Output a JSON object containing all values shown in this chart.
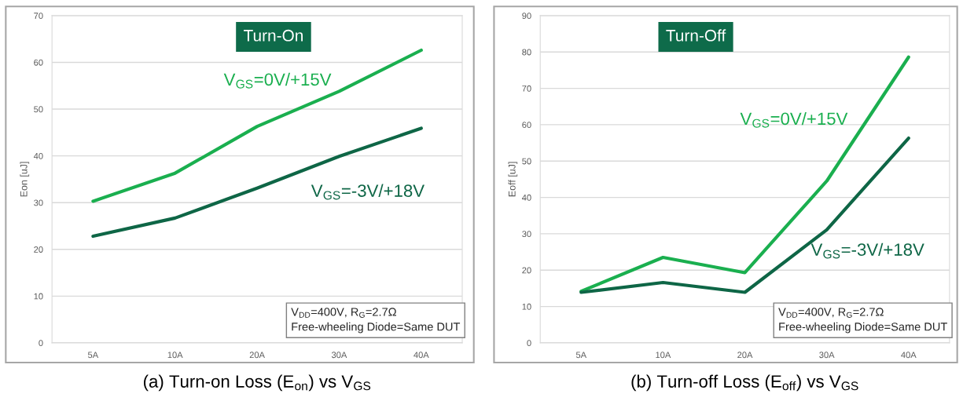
{
  "chart_data": [
    {
      "type": "line",
      "title": "Turn-On",
      "ylabel": "Eon [uJ]",
      "categories": [
        "5A",
        "10A",
        "20A",
        "30A",
        "40A"
      ],
      "series": [
        {
          "name": "V$_{GS}$=0V/+15V",
          "color": "#1aaf4f",
          "values": [
            30.3,
            36.3,
            46.3,
            53.8,
            62.6
          ]
        },
        {
          "name": "V$_{GS}$=-3V/+18V",
          "color": "#0e6646",
          "values": [
            22.8,
            26.7,
            33.1,
            39.9,
            45.9
          ]
        }
      ],
      "ylim": [
        0,
        70
      ],
      "yticks": [
        0,
        10,
        20,
        30,
        40,
        50,
        60,
        70
      ],
      "grid": "y",
      "annotations": [
        "V$_{DD}$=400V, R$_{G}$=2.7Ω\nFree-wheeling Diode=Same DUT",
        "(a) Turn-on Loss (E$_{on}$) vs V$_{GS}$"
      ]
    },
    {
      "type": "line",
      "title": "Turn-Off",
      "ylabel": "Eoff [uJ]",
      "categories": [
        "5A",
        "10A",
        "20A",
        "30A",
        "40A"
      ],
      "series": [
        {
          "name": "V$_{GS}$=0V/+15V",
          "color": "#1aaf4f",
          "values": [
            14.2,
            23.5,
            19.3,
            44.5,
            78.6
          ]
        },
        {
          "name": "V$_{GS}$=-3V/+18V",
          "color": "#0e6646",
          "values": [
            13.9,
            16.6,
            13.9,
            31.1,
            56.3
          ]
        }
      ],
      "ylim": [
        0,
        90
      ],
      "yticks": [
        0,
        10,
        20,
        30,
        40,
        50,
        60,
        70,
        80,
        90
      ],
      "grid": "y",
      "annotations": [
        "V$_{DD}$=400V, R$_{G}$=2.7Ω\nFree-wheeling Diode=Same DUT",
        "(b) Turn-off Loss (E$_{off}$) vs V$_{GS}$"
      ]
    }
  ]
}
